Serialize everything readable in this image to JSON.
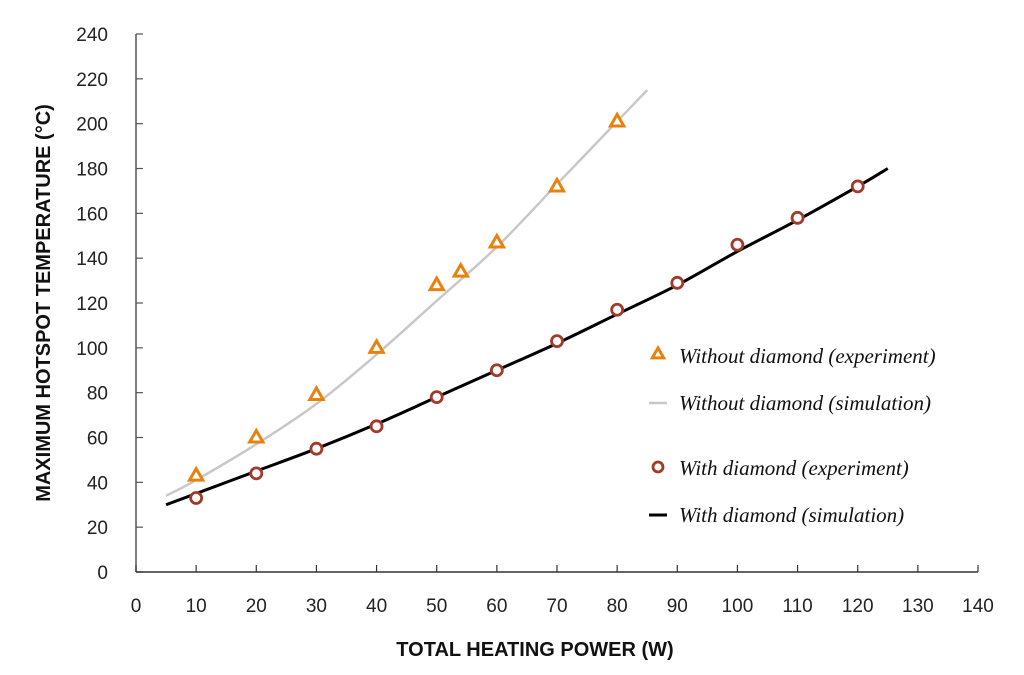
{
  "chart_data": {
    "type": "line",
    "title": "",
    "xlabel": "TOTAL HEATING POWER (W)",
    "ylabel": "MAXIMUM HOTSPOT TEMPERATURE (°C)",
    "xlim": [
      0,
      140
    ],
    "ylim": [
      0,
      240
    ],
    "xticks": [
      0,
      10,
      20,
      30,
      40,
      50,
      60,
      70,
      80,
      90,
      100,
      110,
      120,
      130,
      140
    ],
    "yticks": [
      0,
      20,
      40,
      60,
      80,
      100,
      120,
      140,
      160,
      180,
      200,
      220,
      240
    ],
    "grid": false,
    "legend_position": "right-center",
    "series": [
      {
        "name": "Without diamond (experiment)",
        "kind": "scatter",
        "marker": "triangle-open",
        "color": "#E8820F",
        "x": [
          10,
          20,
          30,
          40,
          50,
          54,
          60,
          70,
          80
        ],
        "y": [
          43,
          60,
          79,
          100,
          128,
          134,
          147,
          172,
          201
        ]
      },
      {
        "name": "Without diamond (simulation)",
        "kind": "line",
        "color": "#C8C8C8",
        "x": [
          5,
          10,
          20,
          30,
          40,
          50,
          60,
          70,
          80,
          85
        ],
        "y": [
          34,
          41,
          57,
          75,
          97,
          121,
          145,
          173,
          201,
          215
        ]
      },
      {
        "name": "With diamond (experiment)",
        "kind": "scatter",
        "marker": "circle-open",
        "color": "#A23A2A",
        "x": [
          10,
          20,
          30,
          40,
          50,
          60,
          70,
          80,
          90,
          100,
          110,
          120
        ],
        "y": [
          33,
          44,
          55,
          65,
          78,
          90,
          103,
          117,
          129,
          146,
          158,
          172
        ]
      },
      {
        "name": "With diamond (simulation)",
        "kind": "line",
        "color": "#000000",
        "x": [
          5,
          10,
          20,
          30,
          40,
          50,
          60,
          70,
          80,
          90,
          100,
          110,
          120,
          125
        ],
        "y": [
          30,
          35,
          45,
          55,
          66,
          78,
          90,
          102,
          115,
          128,
          143,
          157,
          172,
          180
        ]
      }
    ]
  }
}
